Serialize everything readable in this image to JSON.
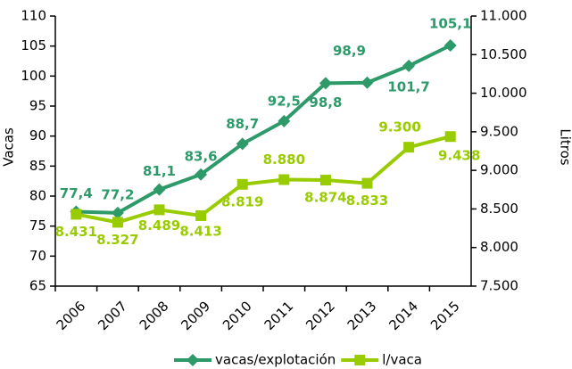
{
  "chart_data": {
    "type": "line",
    "categories": [
      "2006",
      "2007",
      "2008",
      "2009",
      "2010",
      "2011",
      "2012",
      "2013",
      "2014",
      "2015"
    ],
    "series": [
      {
        "name": "vacas/explotación",
        "color": "#2e9a6a",
        "marker": "diamond",
        "values": [
          77.4,
          77.2,
          81.1,
          83.6,
          88.7,
          92.5,
          98.8,
          98.9,
          101.7,
          105.1
        ],
        "value_labels": [
          "77,4",
          "77,2",
          "81,1",
          "83,6",
          "88,7",
          "92,5",
          "98,8",
          "98,9",
          "101,7",
          "105,1"
        ]
      },
      {
        "name": "l/vaca",
        "color": "#99cc00",
        "marker": "square",
        "axis": "y2",
        "values": [
          8431,
          8327,
          8489,
          8413,
          8819,
          8880,
          8874,
          8833,
          9300,
          9438
        ],
        "value_labels": [
          "8.431",
          "8.327",
          "8.489",
          "8.413",
          "8.819",
          "8.880",
          "8.874",
          "8.833",
          "9.300",
          "9.438"
        ]
      }
    ],
    "ylabel": "Vacas",
    "y2label": "Litros",
    "ylim": [
      65,
      110
    ],
    "yticks": [
      65,
      70,
      75,
      80,
      85,
      90,
      95,
      100,
      105,
      110
    ],
    "y2lim": [
      7500,
      11000
    ],
    "y2ticks": [
      {
        "value": 7500,
        "label": "7.500"
      },
      {
        "value": 8000,
        "label": "8.000"
      },
      {
        "value": 8500,
        "label": "8.500"
      },
      {
        "value": 9000,
        "label": "9.000"
      },
      {
        "value": 9500,
        "label": "9.500"
      },
      {
        "value": 10000,
        "label": "10.000"
      },
      {
        "value": 10500,
        "label": "10.500"
      },
      {
        "value": 11000,
        "label": "11.000"
      }
    ],
    "legend": "bottom"
  }
}
